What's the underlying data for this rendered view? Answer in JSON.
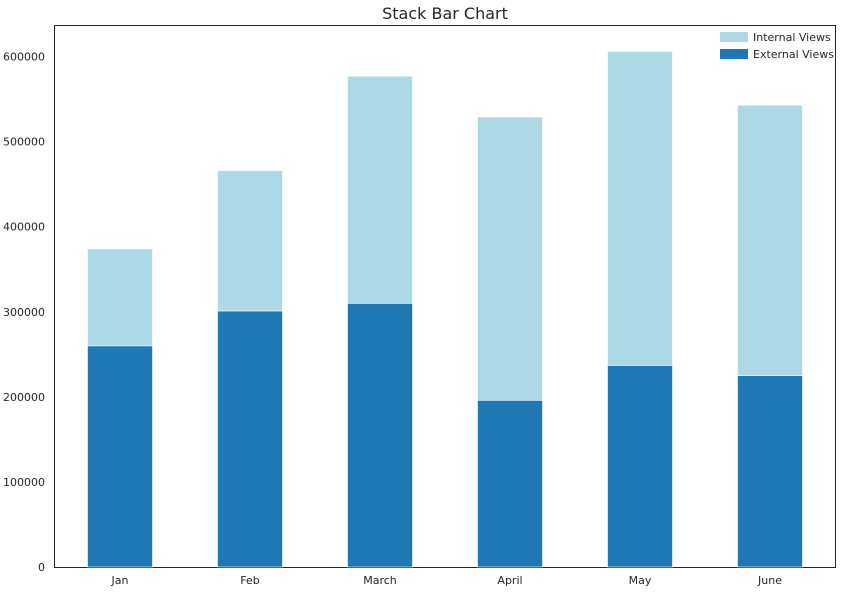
{
  "chart_data": {
    "type": "bar",
    "stacked": true,
    "title": "Stack Bar Chart",
    "xlabel": "",
    "ylabel": "",
    "categories": [
      "Jan",
      "Feb",
      "March",
      "April",
      "May",
      "June"
    ],
    "series": [
      {
        "name": "External Views",
        "color": "#1f77b4",
        "values": [
          260000,
          301000,
          310000,
          196000,
          237000,
          225000
        ]
      },
      {
        "name": "Internal Views",
        "color": "#add8e6",
        "values": [
          114000,
          165000,
          267000,
          333000,
          369000,
          318000
        ]
      }
    ],
    "ylim": [
      0,
      636000
    ],
    "yticks": [
      0,
      100000,
      200000,
      300000,
      400000,
      500000,
      600000
    ],
    "grid": false,
    "legend": {
      "placement": "top-right",
      "entries": [
        {
          "name": "Internal Views",
          "color": "#add8e6"
        },
        {
          "name": "External Views",
          "color": "#1f77b4"
        }
      ]
    }
  }
}
